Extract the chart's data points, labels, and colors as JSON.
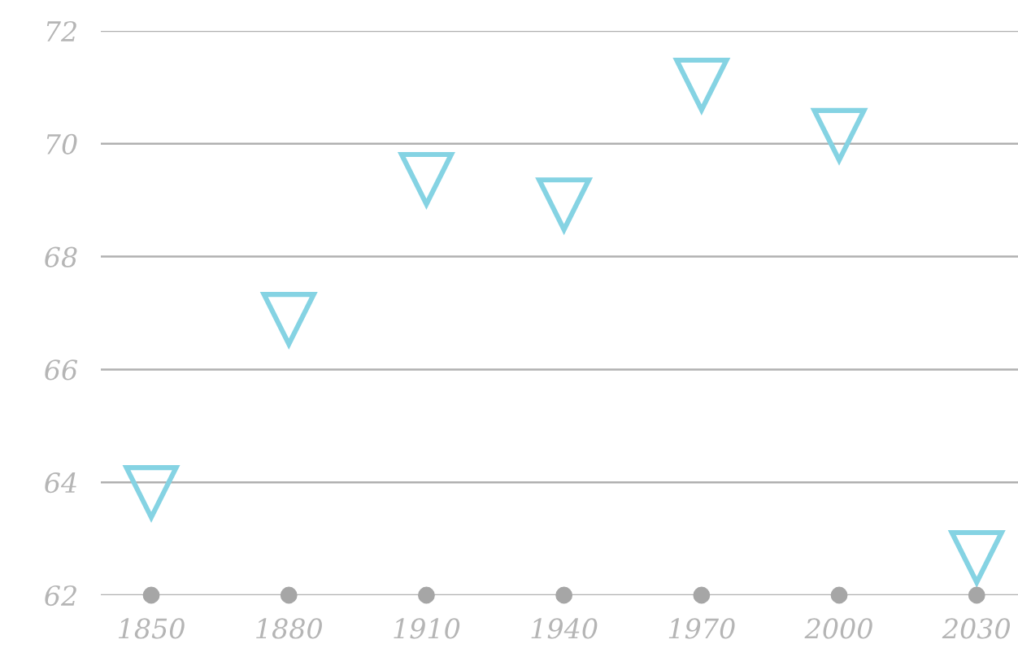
{
  "chart_data": {
    "type": "scatter",
    "x": [
      1850,
      1880,
      1910,
      1940,
      1970,
      2000,
      2030
    ],
    "series": [
      {
        "color": "#85d3e3",
        "marker": "triangle",
        "values": [
          63.82,
          66.89,
          69.37,
          68.92,
          71.04,
          70.15,
          62.67
        ]
      },
      {
        "color": "#a6a6a6",
        "marker": "circle",
        "values": [
          62,
          62,
          62,
          62,
          62,
          62,
          62
        ]
      }
    ],
    "xlim": [
      1839,
      2039
    ],
    "xticks": [
      1850,
      1880,
      1910,
      1940,
      1970,
      2000,
      2030
    ],
    "ylim": [
      62,
      72
    ],
    "yticks": [
      62,
      64,
      66,
      68,
      70,
      72
    ],
    "grid": "y"
  }
}
